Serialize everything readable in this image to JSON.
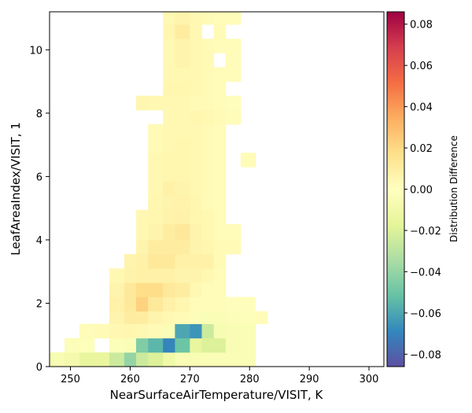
{
  "chart_data": {
    "type": "heatmap",
    "xlabel": "NearSurfaceAirTemperature/VISIT,  K",
    "ylabel": "LeafAreaIndex/VISIT,  1",
    "colorbar_label": "Distribution Difference",
    "colormap": "Spectral_r",
    "xlim": [
      246.5,
      302.5
    ],
    "ylim": [
      0,
      11.2
    ],
    "x_ticks": [
      250,
      260,
      270,
      280,
      290,
      300
    ],
    "y_ticks": [
      0,
      2,
      4,
      6,
      8,
      10
    ],
    "colorbar_range": [
      -0.086,
      0.086
    ],
    "colorbar_ticks": [
      -0.08,
      -0.06,
      -0.04,
      -0.02,
      0.0,
      0.02,
      0.04,
      0.06,
      0.08
    ],
    "colorbar_tick_labels": [
      "−0.08",
      "−0.06",
      "−0.04",
      "−0.02",
      "0.00",
      "0.02",
      "0.04",
      "0.06",
      "0.08"
    ],
    "x_bin_edges": [
      246.5,
      249,
      251.5,
      254,
      256.5,
      259,
      261,
      263,
      265.5,
      267.5,
      270,
      272,
      274,
      276,
      278.5,
      281,
      283
    ],
    "y_bin_edges": [
      0,
      0.45,
      0.9,
      1.35,
      1.75,
      2.2,
      2.65,
      3.1,
      3.55,
      4.0,
      4.5,
      4.95,
      5.4,
      5.85,
      6.3,
      6.75,
      7.2,
      7.65,
      8.1,
      8.55,
      9.0,
      9.45,
      9.9,
      10.35,
      10.8,
      11.2
    ],
    "cells": [
      {
        "row": 0,
        "values": [
          -0.006,
          -0.008,
          -0.015,
          -0.015,
          -0.025,
          -0.04,
          -0.025,
          -0.02,
          -0.01,
          -0.005,
          -0.005,
          -0.004,
          -0.004,
          -0.004,
          -0.004,
          null
        ]
      },
      {
        "row": 1,
        "values": [
          null,
          -0.003,
          -0.002,
          null,
          -0.003,
          -0.004,
          -0.045,
          -0.055,
          -0.07,
          -0.05,
          -0.015,
          -0.02,
          -0.02,
          -0.005,
          -0.004,
          null
        ]
      },
      {
        "row": 2,
        "values": [
          null,
          null,
          0.002,
          0.003,
          0.004,
          0.005,
          0.004,
          0.003,
          -0.004,
          -0.06,
          -0.065,
          -0.025,
          -0.006,
          -0.005,
          -0.004,
          null
        ]
      },
      {
        "row": 3,
        "values": [
          null,
          null,
          null,
          null,
          0.006,
          0.01,
          0.01,
          0.006,
          0.004,
          0.003,
          -0.003,
          -0.004,
          -0.004,
          -0.003,
          -0.002,
          0.002
        ]
      },
      {
        "row": 4,
        "values": [
          null,
          null,
          null,
          null,
          0.008,
          0.012,
          0.022,
          0.012,
          0.008,
          0.005,
          0.002,
          0.002,
          0.002,
          0.001,
          0.001,
          null
        ]
      },
      {
        "row": 5,
        "values": [
          null,
          null,
          null,
          null,
          0.006,
          0.012,
          0.018,
          0.018,
          0.012,
          0.01,
          0.004,
          0.002,
          0.002,
          null,
          null,
          null
        ]
      },
      {
        "row": 6,
        "values": [
          null,
          null,
          null,
          null,
          0.004,
          0.007,
          0.008,
          0.008,
          0.008,
          0.006,
          0.006,
          0.004,
          0.002,
          null,
          null,
          null
        ]
      },
      {
        "row": 7,
        "values": [
          null,
          null,
          null,
          null,
          null,
          0.006,
          0.008,
          0.012,
          0.012,
          0.008,
          0.008,
          0.008,
          0.003,
          null,
          null,
          null
        ]
      },
      {
        "row": 8,
        "values": [
          null,
          null,
          null,
          null,
          null,
          null,
          0.006,
          0.01,
          0.01,
          0.01,
          0.006,
          0.005,
          0.003,
          0.003,
          null,
          null
        ]
      },
      {
        "row": 9,
        "values": [
          null,
          null,
          null,
          null,
          null,
          null,
          0.004,
          0.006,
          0.01,
          0.012,
          0.006,
          0.004,
          0.002,
          0.002,
          null,
          null
        ]
      },
      {
        "row": 10,
        "values": [
          null,
          null,
          null,
          null,
          null,
          null,
          0.004,
          0.005,
          0.007,
          0.008,
          0.005,
          0.004,
          0.002,
          null,
          null,
          null
        ]
      },
      {
        "row": 11,
        "values": [
          null,
          null,
          null,
          null,
          null,
          null,
          null,
          0.005,
          0.006,
          0.007,
          0.005,
          0.003,
          0.002,
          null,
          null,
          null
        ]
      },
      {
        "row": 12,
        "values": [
          null,
          null,
          null,
          null,
          null,
          null,
          null,
          0.004,
          0.008,
          0.006,
          0.004,
          0.003,
          0.002,
          null,
          null,
          null
        ]
      },
      {
        "row": 13,
        "values": [
          null,
          null,
          null,
          null,
          null,
          null,
          null,
          0.004,
          0.005,
          0.005,
          0.004,
          0.003,
          0.002,
          null,
          null,
          null
        ]
      },
      {
        "row": 14,
        "values": [
          null,
          null,
          null,
          null,
          null,
          null,
          null,
          0.004,
          0.005,
          0.005,
          0.004,
          0.003,
          0.002,
          null,
          0.002,
          null
        ]
      },
      {
        "row": 15,
        "values": [
          null,
          null,
          null,
          null,
          null,
          null,
          null,
          0.003,
          0.004,
          0.005,
          0.004,
          0.003,
          0.002,
          null,
          null,
          null
        ]
      },
      {
        "row": 16,
        "values": [
          null,
          null,
          null,
          null,
          null,
          null,
          null,
          0.003,
          0.004,
          0.004,
          0.004,
          0.003,
          0.002,
          null,
          null,
          null
        ]
      },
      {
        "row": 17,
        "values": [
          null,
          null,
          null,
          null,
          null,
          null,
          null,
          null,
          0.004,
          0.004,
          0.005,
          0.004,
          0.003,
          0.002,
          null,
          null
        ]
      },
      {
        "row": 18,
        "values": [
          null,
          null,
          null,
          null,
          null,
          null,
          0.005,
          0.004,
          0.004,
          0.004,
          0.003,
          0.003,
          0.002,
          0.001,
          null,
          null
        ]
      },
      {
        "row": 19,
        "values": [
          null,
          null,
          null,
          null,
          null,
          null,
          null,
          null,
          0.005,
          0.005,
          0.004,
          0.003,
          0.002,
          null,
          null,
          null
        ]
      },
      {
        "row": 20,
        "values": [
          null,
          null,
          null,
          null,
          null,
          null,
          null,
          null,
          0.004,
          0.004,
          0.004,
          0.003,
          0.002,
          0.002,
          null,
          null
        ]
      },
      {
        "row": 21,
        "values": [
          null,
          null,
          null,
          null,
          null,
          null,
          null,
          null,
          0.004,
          0.006,
          0.004,
          0.003,
          null,
          0.002,
          null,
          null
        ]
      },
      {
        "row": 22,
        "values": [
          null,
          null,
          null,
          null,
          null,
          null,
          null,
          null,
          0.004,
          0.006,
          0.004,
          0.003,
          0.002,
          0.002,
          null,
          null
        ]
      },
      {
        "row": 23,
        "values": [
          null,
          null,
          null,
          null,
          null,
          null,
          null,
          null,
          0.005,
          0.01,
          0.004,
          null,
          0.003,
          null,
          null,
          null
        ]
      },
      {
        "row": 24,
        "values": [
          null,
          null,
          null,
          null,
          null,
          null,
          null,
          null,
          0.004,
          0.006,
          0.004,
          0.003,
          0.002,
          0.002,
          null,
          null
        ]
      }
    ]
  }
}
